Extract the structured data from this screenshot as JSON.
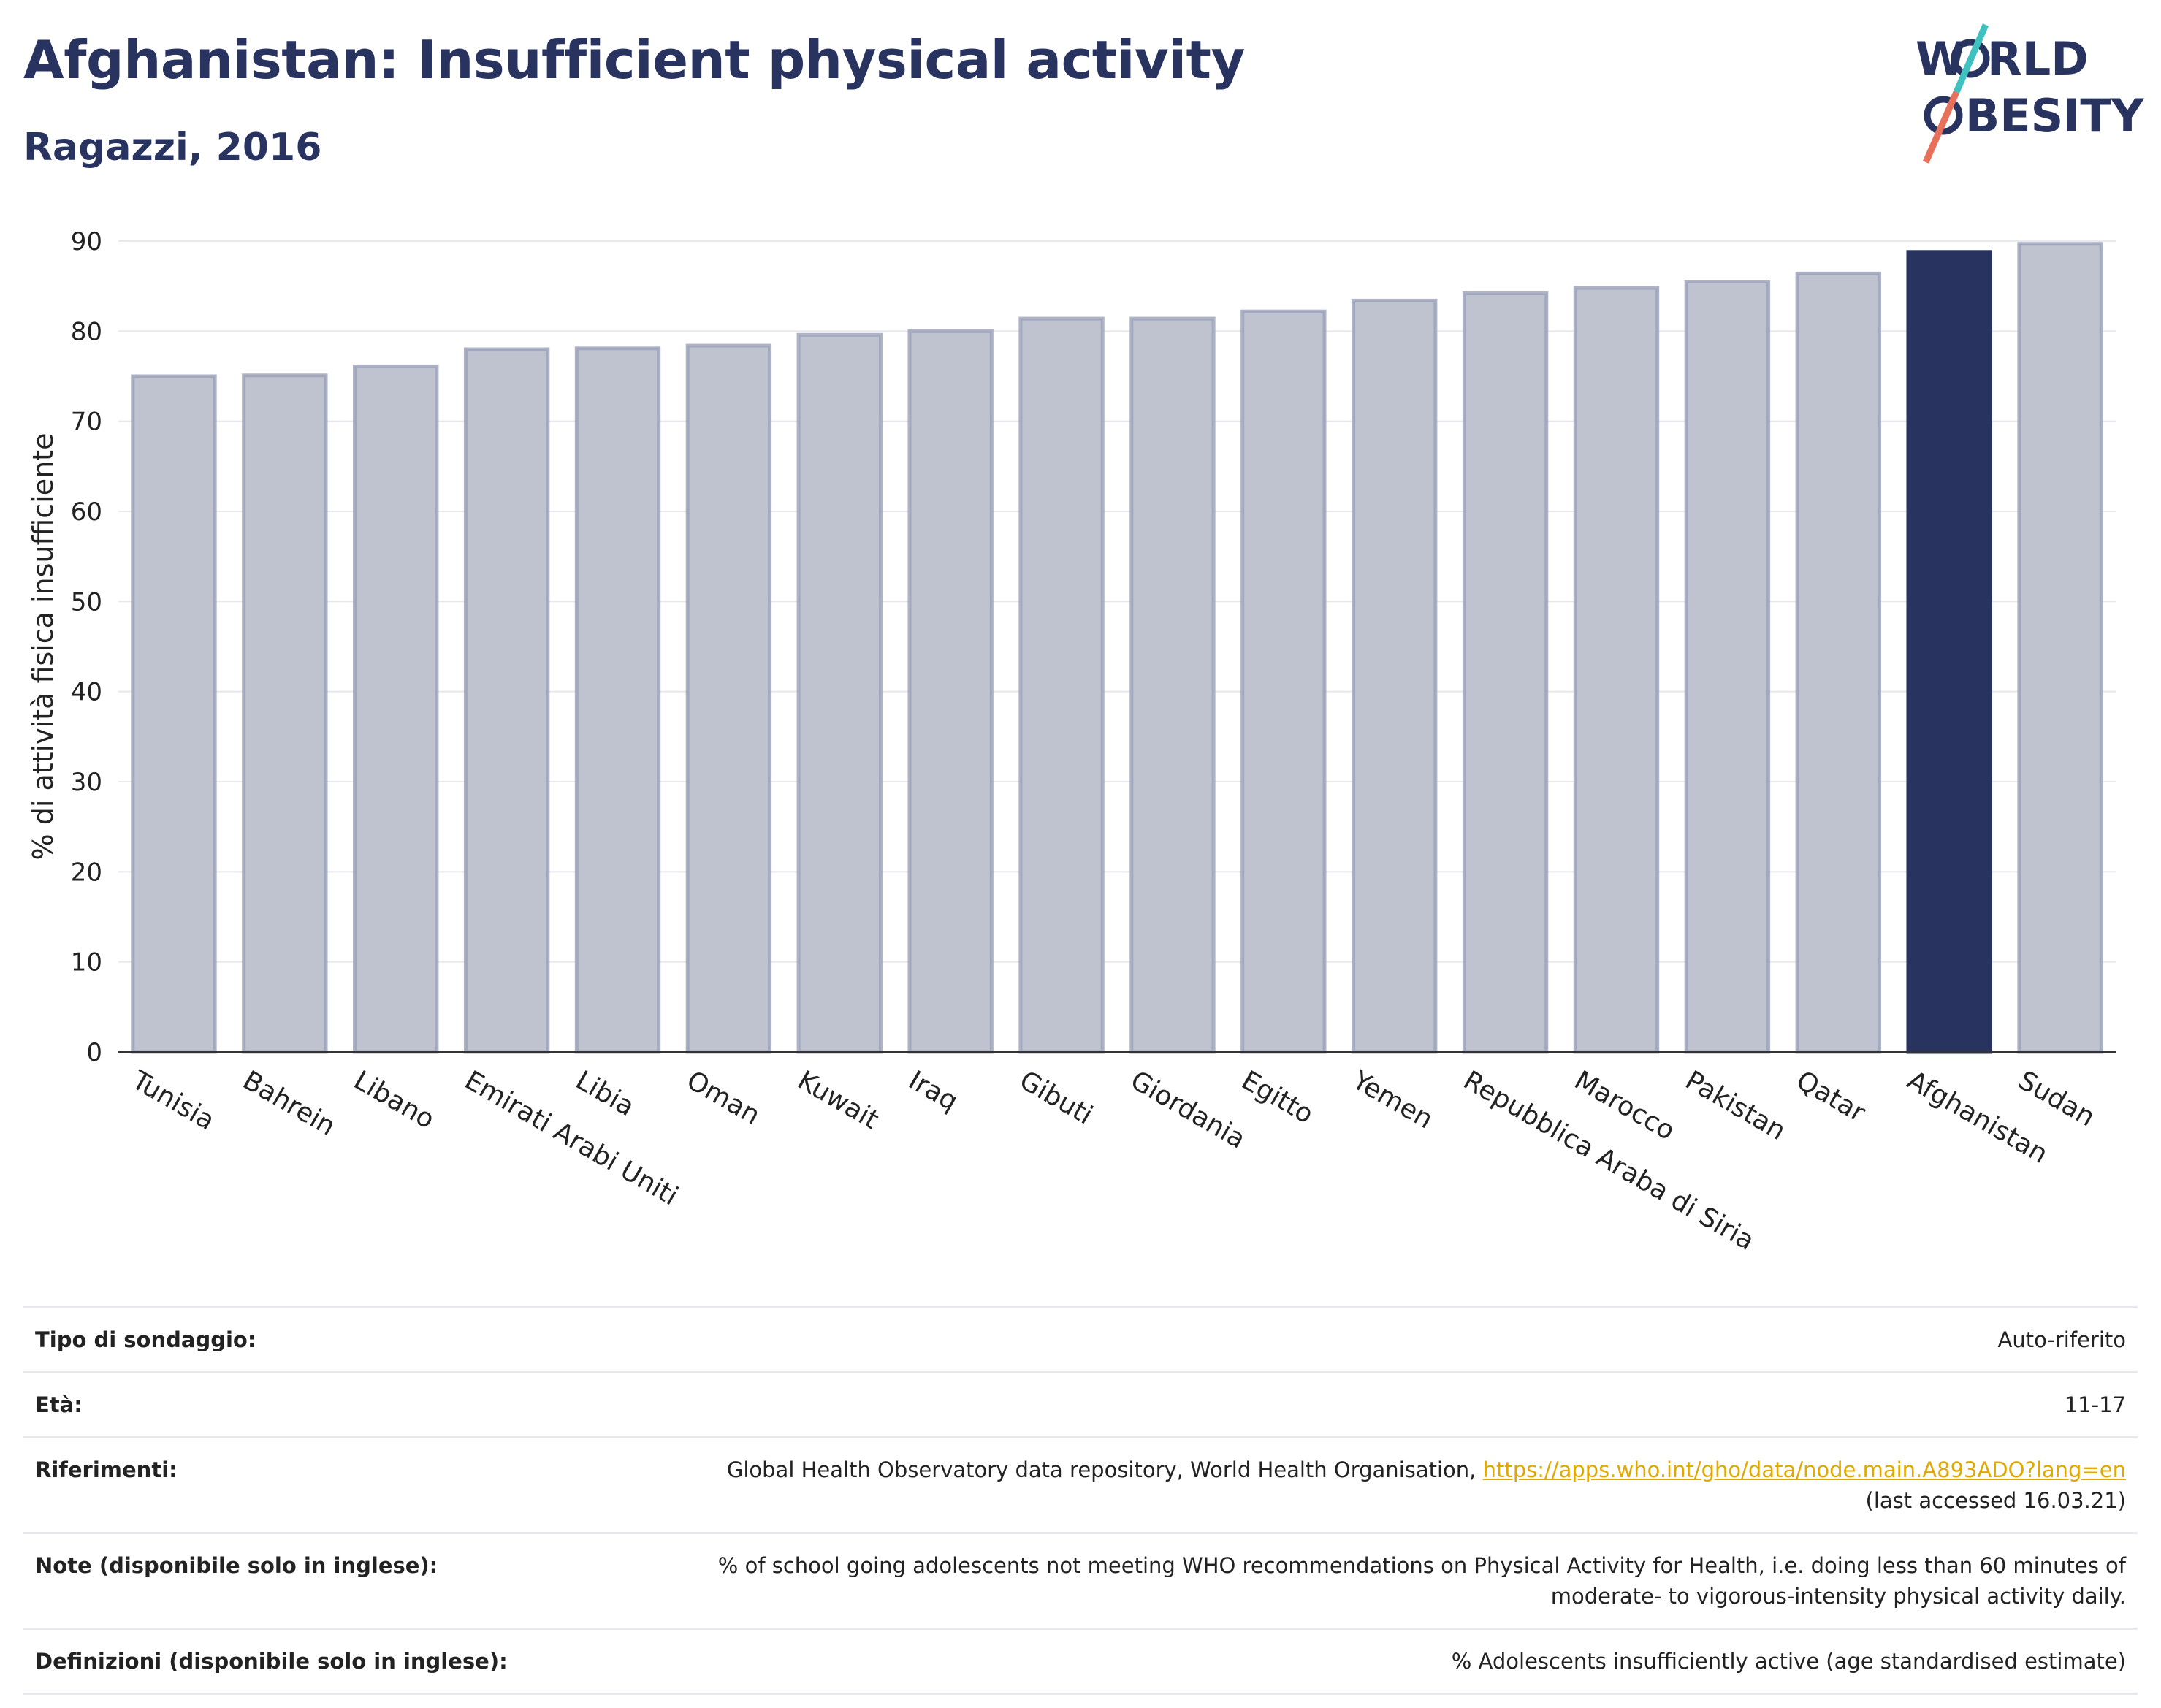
{
  "header": {
    "title": "Afghanistan: Insufficient physical activity",
    "subtitle": "Ragazzi, 2016"
  },
  "logo": {
    "line1": "W",
    "line1_rest": "RLD",
    "line2_rest": "BESITY",
    "colors": {
      "text": "#283360",
      "slash_top": "#3fc1c0",
      "slash_bottom": "#e8705a"
    }
  },
  "chart_data": {
    "type": "bar",
    "title": "",
    "xlabel": "",
    "ylabel": "% di attività fisica insufficiente",
    "ylim": [
      0,
      90
    ],
    "yticks": [
      0,
      10,
      20,
      30,
      40,
      50,
      60,
      70,
      80,
      90
    ],
    "grid": true,
    "categories": [
      "Tunisia",
      "Bahrein",
      "Libano",
      "Emirati Arabi Uniti",
      "Libia",
      "Oman",
      "Kuwait",
      "Iraq",
      "Gibuti",
      "Giordania",
      "Egitto",
      "Yemen",
      "Repubblica Araba di Siria",
      "Marocco",
      "Pakistan",
      "Qatar",
      "Afghanistan",
      "Sudan"
    ],
    "values": [
      75.0,
      75.1,
      76.1,
      78.0,
      78.1,
      78.4,
      79.6,
      80.0,
      81.4,
      81.4,
      82.2,
      83.4,
      84.2,
      84.8,
      85.5,
      86.4,
      88.8,
      89.7
    ],
    "highlight": "Afghanistan",
    "colors": {
      "bar": "#bfc2cf",
      "bar_edge": "#9aa0b8",
      "highlight": "#283360"
    }
  },
  "info": {
    "survey_type": {
      "label": "Tipo di sondaggio:",
      "value": "Auto-riferito"
    },
    "age": {
      "label": "Età:",
      "value": "11-17"
    },
    "references": {
      "label": "Riferimenti:",
      "text": "Global Health Observatory data repository, World Health Organisation, ",
      "link": "https://apps.who.int/gho/data/node.main.A893ADO?lang=en",
      "accessed": "(last accessed 16.03.21)"
    },
    "notes": {
      "label": "Note (disponibile solo in inglese):",
      "value_line1": "% of school going adolescents not meeting WHO recommendations on Physical Activity for Health, i.e. doing less than 60 minutes of",
      "value_line2": "moderate- to vigorous-intensity physical activity daily."
    },
    "definitions": {
      "label": "Definizioni (disponibile solo in inglese):",
      "value": "% Adolescents insufficiently active (age standardised estimate)"
    }
  }
}
